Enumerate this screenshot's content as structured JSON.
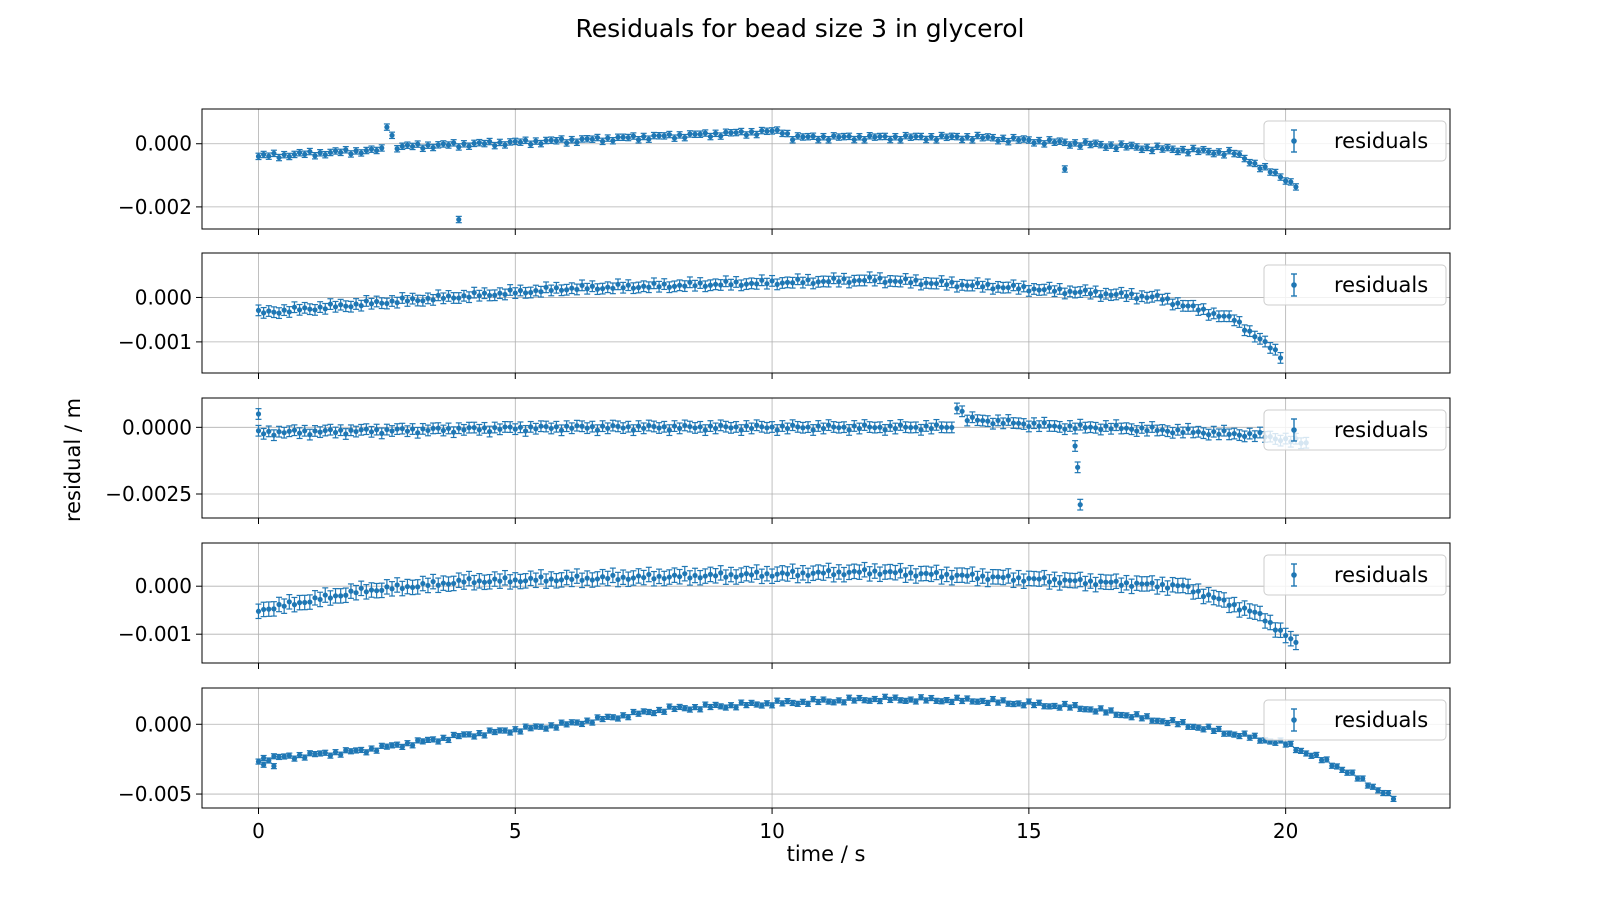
{
  "figure": {
    "title": "Residuals for bead  size 3 in glycerol",
    "xlabel": "time / s",
    "ylabel": "residual / m",
    "series_color": "#1f77b4"
  },
  "chart_data": [
    {
      "type": "scatter",
      "error_bars": true,
      "legend_label": "residuals",
      "legend_position": "upper right",
      "grid": true,
      "xlim": [
        -1.1,
        23.2
      ],
      "ylim": [
        -0.0027,
        0.0011
      ],
      "xticks": [
        0,
        5,
        10,
        15,
        20
      ],
      "yticks": [
        0.0,
        -0.002
      ],
      "ytick_labels": [
        "0.000",
        "−0.002"
      ],
      "yerr": 0.0001,
      "curve": {
        "x_start": 0.0,
        "x_end": 20.2,
        "step": 0.1,
        "knots": [
          [
            0,
            -0.0004
          ],
          [
            2.4,
            -0.0002
          ],
          [
            2.5,
            0.0006
          ],
          [
            2.7,
            -0.0001
          ],
          [
            6,
            0.0001
          ],
          [
            10.2,
            0.0004
          ],
          [
            10.4,
            0.0002
          ],
          [
            14,
            0.0002
          ],
          [
            19,
            -0.0003
          ],
          [
            20.2,
            -0.0013
          ]
        ]
      },
      "outliers": [
        {
          "x": 3.9,
          "y": -0.0024
        },
        {
          "x": 15.7,
          "y": -0.0008
        }
      ]
    },
    {
      "type": "scatter",
      "error_bars": true,
      "legend_label": "residuals",
      "legend_position": "upper right",
      "grid": true,
      "xlim": [
        -1.1,
        23.2
      ],
      "ylim": [
        -0.0017,
        0.001
      ],
      "xticks": [
        0,
        5,
        10,
        15,
        20
      ],
      "yticks": [
        0.0,
        -0.001
      ],
      "ytick_labels": [
        "0.000",
        "−0.001"
      ],
      "yerr": 0.00012,
      "curve": {
        "x_start": 0.0,
        "x_end": 19.9,
        "step": 0.1,
        "knots": [
          [
            0,
            -0.00035
          ],
          [
            2.5,
            -0.0001
          ],
          [
            6,
            0.0002
          ],
          [
            9,
            0.0003
          ],
          [
            12,
            0.0004
          ],
          [
            15,
            0.0002
          ],
          [
            17.5,
            0.0
          ],
          [
            19,
            -0.0005
          ],
          [
            19.9,
            -0.0013
          ]
        ]
      },
      "outliers": []
    },
    {
      "type": "scatter",
      "error_bars": true,
      "legend_label": "residuals",
      "legend_position": "upper right",
      "grid": true,
      "xlim": [
        -1.1,
        23.2
      ],
      "ylim": [
        -0.0034,
        0.0011
      ],
      "xticks": [
        0,
        5,
        10,
        15,
        20
      ],
      "yticks": [
        0.0,
        -0.0025
      ],
      "ytick_labels": [
        "0.0000",
        "−0.0025"
      ],
      "yerr": 0.0002,
      "curve": {
        "x_start": 0.0,
        "x_end": 20.4,
        "step": 0.1,
        "knots": [
          [
            0,
            -0.0002
          ],
          [
            3,
            -0.0001
          ],
          [
            6,
            0.0
          ],
          [
            10,
            0.0
          ],
          [
            13.5,
            0.0
          ],
          [
            13.6,
            0.0008
          ],
          [
            13.8,
            0.0003
          ],
          [
            15.8,
            0.0
          ],
          [
            16.5,
            0.0
          ],
          [
            19.5,
            -0.0003
          ],
          [
            20.4,
            -0.0006
          ]
        ]
      },
      "outliers": [
        {
          "x": 0.0,
          "y": 0.0005
        },
        {
          "x": 15.9,
          "y": -0.0007
        },
        {
          "x": 15.95,
          "y": -0.0015
        },
        {
          "x": 16.0,
          "y": -0.0029
        }
      ]
    },
    {
      "type": "scatter",
      "error_bars": true,
      "legend_label": "residuals",
      "legend_position": "upper right",
      "grid": true,
      "xlim": [
        -1.1,
        23.2
      ],
      "ylim": [
        -0.0016,
        0.0009
      ],
      "xticks": [
        0,
        5,
        10,
        15,
        20
      ],
      "yticks": [
        0.0,
        -0.001
      ],
      "ytick_labels": [
        "0.000",
        "−0.001"
      ],
      "yerr": 0.00015,
      "curve": {
        "x_start": 0.0,
        "x_end": 20.2,
        "step": 0.1,
        "knots": [
          [
            0,
            -0.0005
          ],
          [
            2,
            -0.0001
          ],
          [
            4,
            0.0001
          ],
          [
            8,
            0.0002
          ],
          [
            12,
            0.0003
          ],
          [
            14,
            0.0002
          ],
          [
            18,
            0.0
          ],
          [
            19.5,
            -0.0006
          ],
          [
            20.2,
            -0.0012
          ]
        ]
      },
      "outliers": []
    },
    {
      "type": "scatter",
      "error_bars": true,
      "legend_label": "residuals",
      "legend_position": "upper right",
      "grid": true,
      "xlim": [
        -1.1,
        23.2
      ],
      "ylim": [
        -0.006,
        0.0026
      ],
      "xticks": [
        0,
        5,
        10,
        15,
        20
      ],
      "yticks": [
        0.0,
        -0.005
      ],
      "ytick_labels": [
        "0.000",
        "−0.005"
      ],
      "yerr": 0.00018,
      "curve": {
        "x_start": 0.0,
        "x_end": 22.1,
        "step": 0.1,
        "knots": [
          [
            0,
            -0.0025
          ],
          [
            2,
            -0.0019
          ],
          [
            4,
            -0.0008
          ],
          [
            6,
            0.0
          ],
          [
            8,
            0.0011
          ],
          [
            10,
            0.0015
          ],
          [
            12,
            0.0018
          ],
          [
            14,
            0.0017
          ],
          [
            16,
            0.0012
          ],
          [
            18,
            0.0
          ],
          [
            20,
            -0.0014
          ],
          [
            21,
            -0.003
          ],
          [
            22.1,
            -0.0053
          ]
        ]
      },
      "outliers": [
        {
          "x": 0.1,
          "y": -0.0029
        },
        {
          "x": 0.3,
          "y": -0.003
        }
      ]
    }
  ]
}
